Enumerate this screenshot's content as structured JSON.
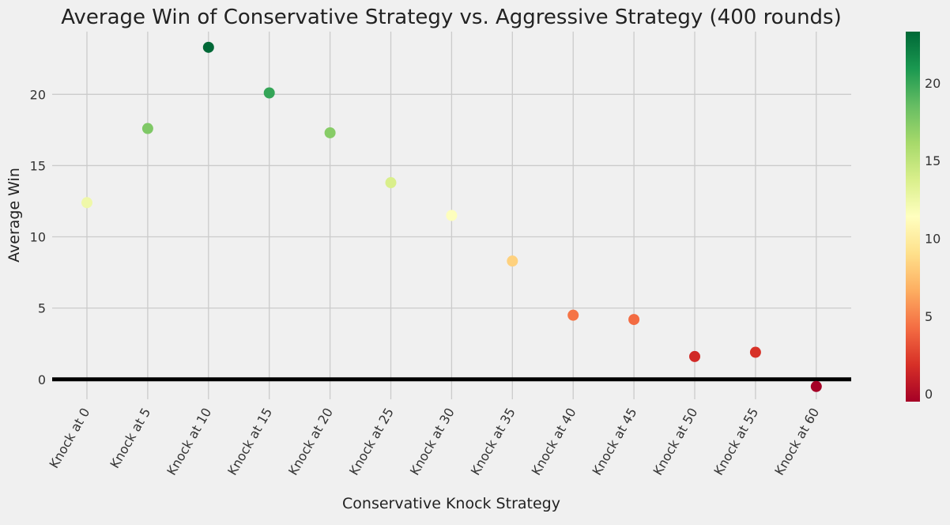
{
  "chart_data": {
    "type": "scatter",
    "title": "Average Win of Conservative Strategy vs. Aggressive Strategy (400 rounds)",
    "xlabel": "Conservative Knock Strategy",
    "ylabel": "Average Win",
    "categories": [
      "Knock at 0",
      "Knock at 5",
      "Knock at 10",
      "Knock at 15",
      "Knock at 20",
      "Knock at 25",
      "Knock at 30",
      "Knock at 35",
      "Knock at 40",
      "Knock at 45",
      "Knock at 50",
      "Knock at 55",
      "Knock at 60"
    ],
    "values": [
      12.4,
      17.6,
      23.3,
      20.1,
      17.3,
      13.8,
      11.5,
      8.3,
      4.5,
      4.2,
      1.6,
      1.9,
      -0.5
    ],
    "ylim": [
      -1.4,
      24.4
    ],
    "yticks": [
      0,
      5,
      10,
      15,
      20
    ],
    "grid": true,
    "reference_line_y": 0,
    "colormap": "RdYlGn",
    "colorbar": {
      "range": [
        -0.5,
        23.3
      ],
      "ticks": [
        0,
        5,
        10,
        15,
        20
      ]
    }
  }
}
